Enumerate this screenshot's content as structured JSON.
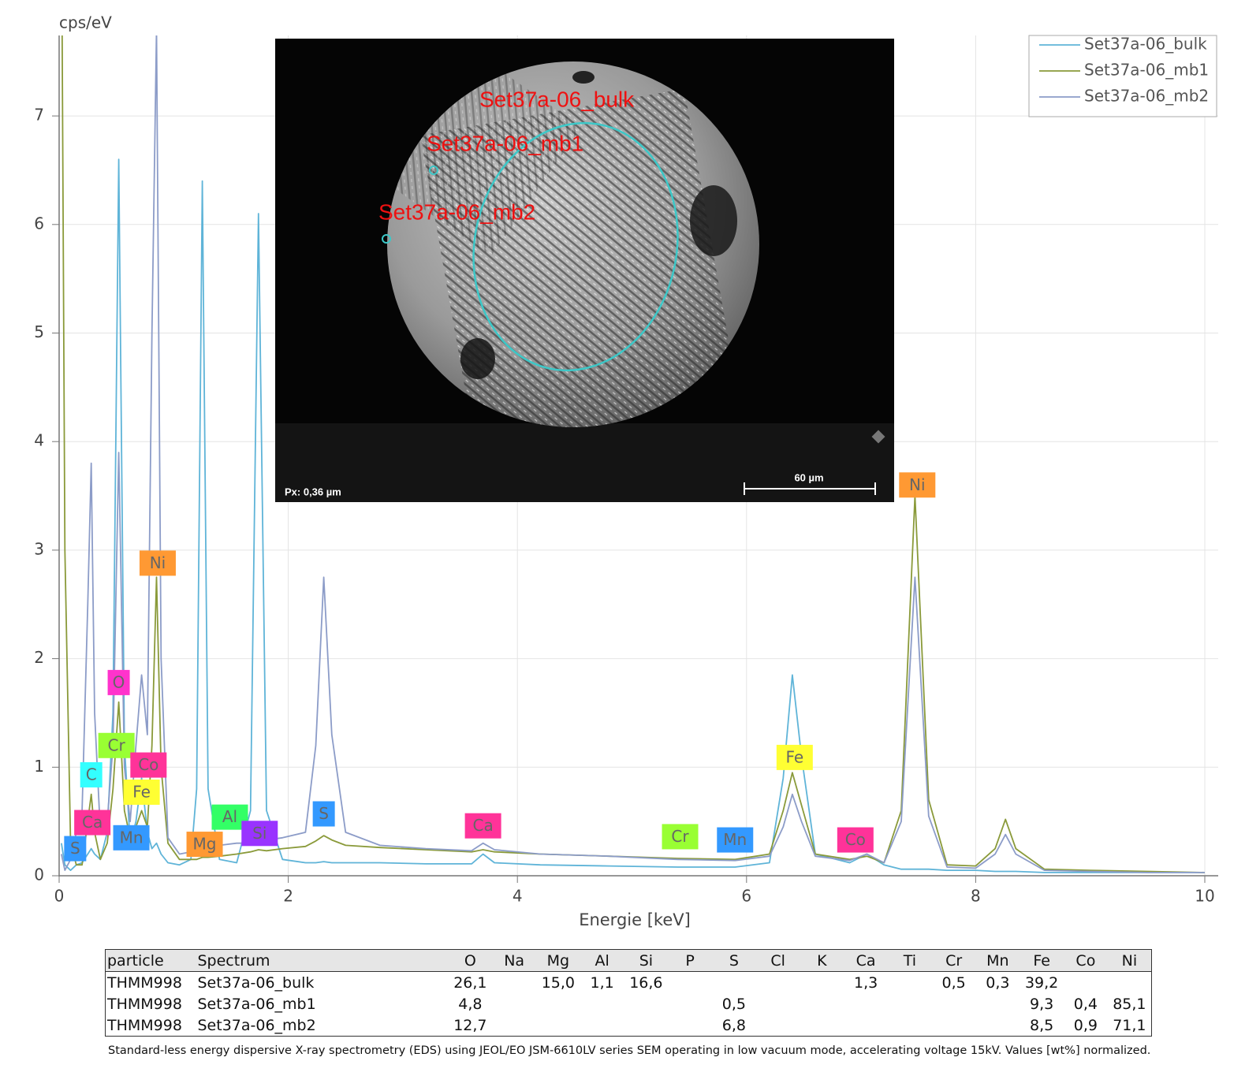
{
  "chart_data": {
    "type": "line",
    "y_label": "cps/eV",
    "x_label": "Energie [keV]",
    "xlim": [
      0,
      10
    ],
    "xticks": [
      0,
      2,
      4,
      6,
      8,
      10
    ],
    "ylim": [
      0,
      7.75
    ],
    "yticks": [
      0,
      1,
      2,
      3,
      4,
      5,
      6,
      7
    ],
    "grid": true,
    "legend": "top-right",
    "x": [
      0.02,
      0.05,
      0.1,
      0.15,
      0.2,
      0.25,
      0.28,
      0.31,
      0.36,
      0.42,
      0.47,
      0.52,
      0.57,
      0.62,
      0.67,
      0.72,
      0.77,
      0.81,
      0.85,
      0.89,
      0.95,
      1.05,
      1.15,
      1.2,
      1.25,
      1.3,
      1.4,
      1.55,
      1.67,
      1.74,
      1.81,
      1.95,
      2.15,
      2.24,
      2.31,
      2.38,
      2.5,
      2.8,
      3.2,
      3.6,
      3.7,
      3.8,
      4.2,
      4.8,
      5.4,
      5.9,
      6.2,
      6.32,
      6.4,
      6.48,
      6.6,
      6.9,
      7.05,
      7.2,
      7.35,
      7.47,
      7.59,
      7.75,
      8.0,
      8.17,
      8.26,
      8.35,
      8.6,
      9.0,
      9.5,
      10.0
    ],
    "series": [
      {
        "name": "Set37a-06_bulk",
        "color": "#5fb4d8",
        "values": [
          0.3,
          0.1,
          0.05,
          0.1,
          0.12,
          0.2,
          0.25,
          0.2,
          0.15,
          0.4,
          1.5,
          6.6,
          1.2,
          0.3,
          0.5,
          0.9,
          0.4,
          0.25,
          0.3,
          0.2,
          0.12,
          0.1,
          0.15,
          0.8,
          6.4,
          0.8,
          0.15,
          0.12,
          0.6,
          6.1,
          0.6,
          0.15,
          0.12,
          0.12,
          0.13,
          0.12,
          0.12,
          0.12,
          0.11,
          0.11,
          0.2,
          0.12,
          0.1,
          0.09,
          0.08,
          0.08,
          0.12,
          0.9,
          1.85,
          1.1,
          0.2,
          0.12,
          0.2,
          0.1,
          0.06,
          0.06,
          0.06,
          0.05,
          0.05,
          0.04,
          0.04,
          0.04,
          0.03,
          0.03,
          0.03,
          0.03
        ]
      },
      {
        "name": "Set37a-06_mb1",
        "color": "#8a9a3a",
        "values": [
          9,
          3,
          0.3,
          0.1,
          0.1,
          0.5,
          0.75,
          0.4,
          0.15,
          0.3,
          0.8,
          1.6,
          0.6,
          0.35,
          0.45,
          0.6,
          0.45,
          1.2,
          2.75,
          1.0,
          0.3,
          0.15,
          0.15,
          0.15,
          0.17,
          0.17,
          0.18,
          0.2,
          0.22,
          0.24,
          0.23,
          0.25,
          0.27,
          0.32,
          0.37,
          0.33,
          0.28,
          0.26,
          0.24,
          0.22,
          0.24,
          0.22,
          0.2,
          0.18,
          0.16,
          0.15,
          0.2,
          0.6,
          0.95,
          0.65,
          0.2,
          0.15,
          0.18,
          0.12,
          0.6,
          3.5,
          0.7,
          0.1,
          0.09,
          0.25,
          0.52,
          0.25,
          0.06,
          0.05,
          0.04,
          0.03
        ]
      },
      {
        "name": "Set37a-06_mb2",
        "color": "#8c9cc8",
        "values": [
          0.2,
          0.05,
          0.15,
          0.4,
          0.6,
          2.5,
          3.8,
          1.5,
          0.4,
          0.5,
          1.2,
          3.9,
          1.0,
          0.5,
          1.2,
          1.85,
          1.3,
          5,
          7.8,
          2,
          0.35,
          0.2,
          0.22,
          0.25,
          0.27,
          0.26,
          0.28,
          0.3,
          0.3,
          0.32,
          0.33,
          0.35,
          0.4,
          1.2,
          2.75,
          1.3,
          0.4,
          0.28,
          0.25,
          0.23,
          0.3,
          0.24,
          0.2,
          0.18,
          0.15,
          0.14,
          0.18,
          0.45,
          0.75,
          0.5,
          0.18,
          0.14,
          0.2,
          0.12,
          0.5,
          2.75,
          0.55,
          0.08,
          0.07,
          0.2,
          0.38,
          0.2,
          0.05,
          0.04,
          0.03,
          0.03
        ]
      }
    ],
    "annotations": [
      {
        "text": "S",
        "x": 0.14,
        "y": 0.25,
        "color": "#3399ff"
      },
      {
        "text": "Ca",
        "x": 0.29,
        "y": 0.49,
        "color": "#ff3399"
      },
      {
        "text": "C",
        "x": 0.28,
        "y": 0.93,
        "color": "#33ffff"
      },
      {
        "text": "O",
        "x": 0.52,
        "y": 1.78,
        "color": "#ff33cc"
      },
      {
        "text": "Cr",
        "x": 0.5,
        "y": 1.2,
        "color": "#99ff33"
      },
      {
        "text": "Mn",
        "x": 0.63,
        "y": 0.35,
        "color": "#3399ff"
      },
      {
        "text": "Fe",
        "x": 0.72,
        "y": 0.77,
        "color": "#ffff33"
      },
      {
        "text": "Co",
        "x": 0.78,
        "y": 1.02,
        "color": "#ff3399"
      },
      {
        "text": "Ni",
        "x": 0.86,
        "y": 2.88,
        "color": "#ff9933"
      },
      {
        "text": "Mg",
        "x": 1.27,
        "y": 0.29,
        "color": "#ff9933"
      },
      {
        "text": "Al",
        "x": 1.49,
        "y": 0.54,
        "color": "#33ff66"
      },
      {
        "text": "Si",
        "x": 1.75,
        "y": 0.39,
        "color": "#9933ff"
      },
      {
        "text": "S",
        "x": 2.31,
        "y": 0.57,
        "color": "#3399ff"
      },
      {
        "text": "Ca",
        "x": 3.7,
        "y": 0.46,
        "color": "#ff3399"
      },
      {
        "text": "Cr",
        "x": 5.42,
        "y": 0.36,
        "color": "#99ff33"
      },
      {
        "text": "Mn",
        "x": 5.9,
        "y": 0.33,
        "color": "#3399ff"
      },
      {
        "text": "Fe",
        "x": 6.42,
        "y": 1.09,
        "color": "#ffff33"
      },
      {
        "text": "Co",
        "x": 6.95,
        "y": 0.33,
        "color": "#ff3399"
      },
      {
        "text": "Ni",
        "x": 7.49,
        "y": 3.6,
        "color": "#ff9933"
      }
    ]
  },
  "inset": {
    "labels": [
      "Set37a-06_bulk",
      "Set37a-06_mb1",
      "Set37a-06_mb2"
    ],
    "pixel_size": "Px: 0,36 µm",
    "scale_bar": "60 µm"
  },
  "table": {
    "columns": [
      "particle",
      "Spectrum",
      "O",
      "Na",
      "Mg",
      "Al",
      "Si",
      "P",
      "S",
      "Cl",
      "K",
      "Ca",
      "Ti",
      "Cr",
      "Mn",
      "Fe",
      "Co",
      "Ni"
    ],
    "rows": [
      [
        "THMM998",
        "Set37a-06_bulk",
        "26,1",
        null,
        "15,0",
        "1,1",
        "16,6",
        null,
        null,
        null,
        null,
        "1,3",
        null,
        "0,5",
        "0,3",
        "39,2",
        null,
        null
      ],
      [
        "THMM998",
        "Set37a-06_mb1",
        "4,8",
        null,
        null,
        null,
        null,
        null,
        "0,5",
        null,
        null,
        null,
        null,
        null,
        null,
        "9,3",
        "0,4",
        "85,1"
      ],
      [
        "THMM998",
        "Set37a-06_mb2",
        "12,7",
        null,
        null,
        null,
        null,
        null,
        "6,8",
        null,
        null,
        null,
        null,
        null,
        null,
        "8,5",
        "0,9",
        "71,1"
      ]
    ],
    "note": "Standard-less energy dispersive X-ray spectrometry (EDS) using JEOL/EO JSM-6610LV series SEM operating in low vacuum mode, accelerating voltage 15kV. Values [wt%] normalized."
  }
}
